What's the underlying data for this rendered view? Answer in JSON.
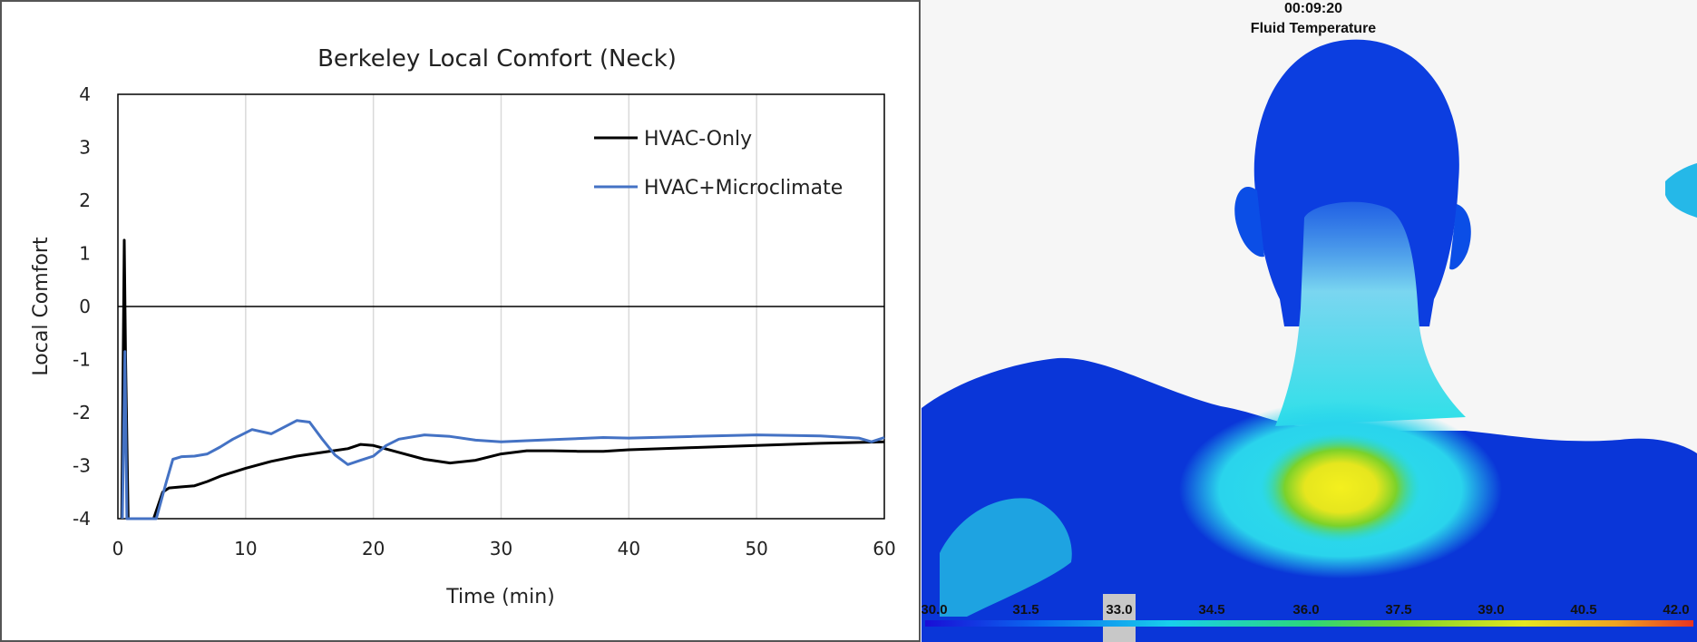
{
  "chart_data": {
    "type": "line",
    "title": "Berkeley Local Comfort (Neck)",
    "xlabel": "Time (min)",
    "ylabel": "Local Comfort",
    "xlim": [
      0,
      60
    ],
    "ylim": [
      -4,
      4
    ],
    "xticks": [
      0,
      10,
      20,
      30,
      40,
      50,
      60
    ],
    "yticks": [
      4,
      3,
      2,
      1,
      0,
      -1,
      -2,
      -3,
      -4
    ],
    "grid": "vertical",
    "legend": "top-right",
    "series": [
      {
        "name": "HVAC-Only",
        "color": "#000000",
        "x": [
          0.3,
          0.5,
          0.6,
          0.8,
          2.8,
          3.5,
          4,
          5,
          6,
          7,
          8,
          10,
          12,
          14,
          16,
          18,
          19,
          20,
          22,
          24,
          26,
          28,
          30,
          32,
          34,
          36,
          38,
          40,
          45,
          50,
          55,
          60
        ],
        "y": [
          -4.0,
          1.25,
          -0.9,
          -4.0,
          -4.0,
          -3.5,
          -3.42,
          -3.4,
          -3.38,
          -3.3,
          -3.2,
          -3.05,
          -2.92,
          -2.82,
          -2.75,
          -2.68,
          -2.6,
          -2.62,
          -2.75,
          -2.88,
          -2.95,
          -2.9,
          -2.78,
          -2.72,
          -2.72,
          -2.73,
          -2.73,
          -2.7,
          -2.66,
          -2.62,
          -2.58,
          -2.55
        ]
      },
      {
        "name": "HVAC+Microclimate",
        "color": "#4472C4",
        "x": [
          0.35,
          0.55,
          0.7,
          0.9,
          3.0,
          3.8,
          4.3,
          5,
          6,
          7,
          8,
          9,
          10.5,
          12,
          14,
          15,
          16,
          17,
          18,
          19,
          20,
          21,
          22,
          24,
          26,
          28,
          30,
          32,
          35,
          38,
          40,
          45,
          50,
          55,
          58,
          59,
          60
        ],
        "y": [
          -4.0,
          -0.85,
          -4.0,
          -4.0,
          -4.0,
          -3.3,
          -2.88,
          -2.83,
          -2.82,
          -2.78,
          -2.65,
          -2.5,
          -2.32,
          -2.4,
          -2.15,
          -2.18,
          -2.5,
          -2.8,
          -2.98,
          -2.9,
          -2.82,
          -2.62,
          -2.5,
          -2.42,
          -2.45,
          -2.52,
          -2.55,
          -2.53,
          -2.5,
          -2.47,
          -2.48,
          -2.45,
          -2.42,
          -2.44,
          -2.48,
          -2.55,
          -2.47
        ]
      }
    ]
  },
  "simulation": {
    "timestamp": "00:09:20",
    "variable": "Fluid Temperature",
    "colorbar_labels": [
      "30.0",
      "31.5",
      "33.0",
      "34.5",
      "36.0",
      "37.5",
      "39.0",
      "40.5",
      "42.0"
    ],
    "colormap": [
      "#1a0dd6",
      "#0a6cf0",
      "#18d0ec",
      "#2cd67a",
      "#7bd22a",
      "#e6e61e",
      "#f0a41e",
      "#e8341e"
    ]
  }
}
